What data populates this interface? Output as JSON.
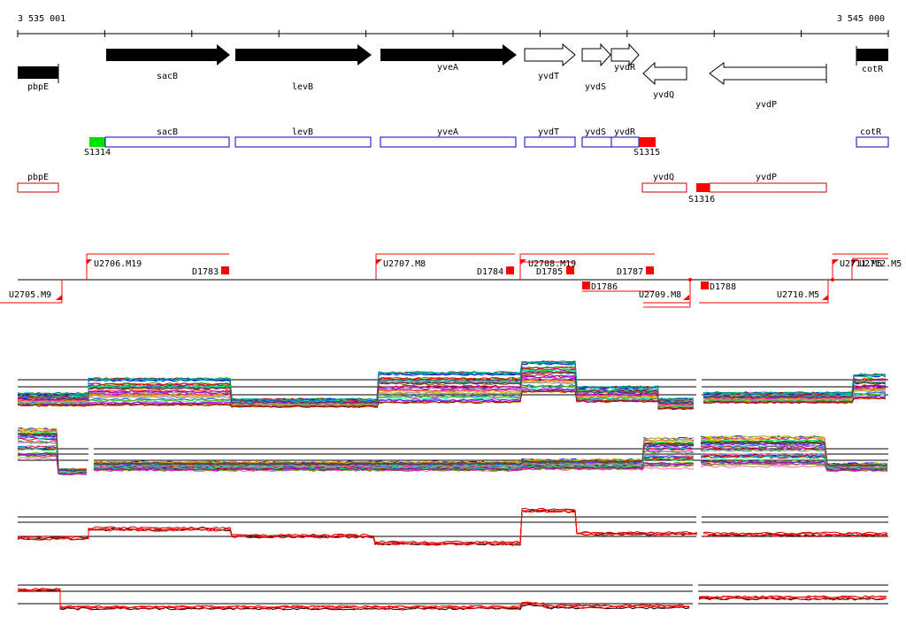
{
  "coordinates": {
    "start_label": "3 535 001",
    "end_label": "3 545 000"
  },
  "genes": [
    {
      "name": "pbpE",
      "type": "block",
      "filled": true
    },
    {
      "name": "sacB",
      "strand": "+",
      "filled": true
    },
    {
      "name": "levB",
      "strand": "+",
      "filled": true
    },
    {
      "name": "yveA",
      "strand": "+",
      "filled": true
    },
    {
      "name": "yvdT",
      "strand": "+",
      "filled": false
    },
    {
      "name": "yvdS",
      "strand": "+",
      "filled": false
    },
    {
      "name": "yvdR",
      "strand": "+",
      "filled": false
    },
    {
      "name": "yvdQ",
      "strand": "-",
      "filled": false
    },
    {
      "name": "yvdP",
      "strand": "-",
      "filled": false
    },
    {
      "name": "cotR",
      "type": "block",
      "filled": true
    }
  ],
  "transcripts_forward": [
    {
      "label": "sacB"
    },
    {
      "label": "levB"
    },
    {
      "label": "yveA"
    },
    {
      "label": "yvdT"
    },
    {
      "label": "yvdS"
    },
    {
      "label": "yvdR"
    },
    {
      "label": "cotR"
    }
  ],
  "transcripts_reverse": [
    {
      "label": "pbpE"
    },
    {
      "label": "yvdQ"
    },
    {
      "label": "yvdP"
    }
  ],
  "sigma_sites": [
    {
      "label": "S1314",
      "color": "#00e000"
    },
    {
      "label": "S1315",
      "color": "#ff0000"
    },
    {
      "label": "S1316",
      "color": "#ff0000"
    }
  ],
  "segments": [
    {
      "label": "U2705.M9"
    },
    {
      "label": "U2706.M19"
    },
    {
      "label": "D1783"
    },
    {
      "label": "U2707.M8"
    },
    {
      "label": "D1784"
    },
    {
      "label": "U2708.M19"
    },
    {
      "label": "D1785"
    },
    {
      "label": "D1786"
    },
    {
      "label": "D1787"
    },
    {
      "label": "U2709.M8"
    },
    {
      "label": "D1788"
    },
    {
      "label": "U2710.M5"
    },
    {
      "label": "U2711.M5"
    },
    {
      "label": "U2712.M5"
    }
  ],
  "colors": {
    "accent": "#ff0000",
    "transcript_forward": "#0000cc",
    "transcript_reverse": "#cc0000",
    "site_green": "#00e000"
  }
}
